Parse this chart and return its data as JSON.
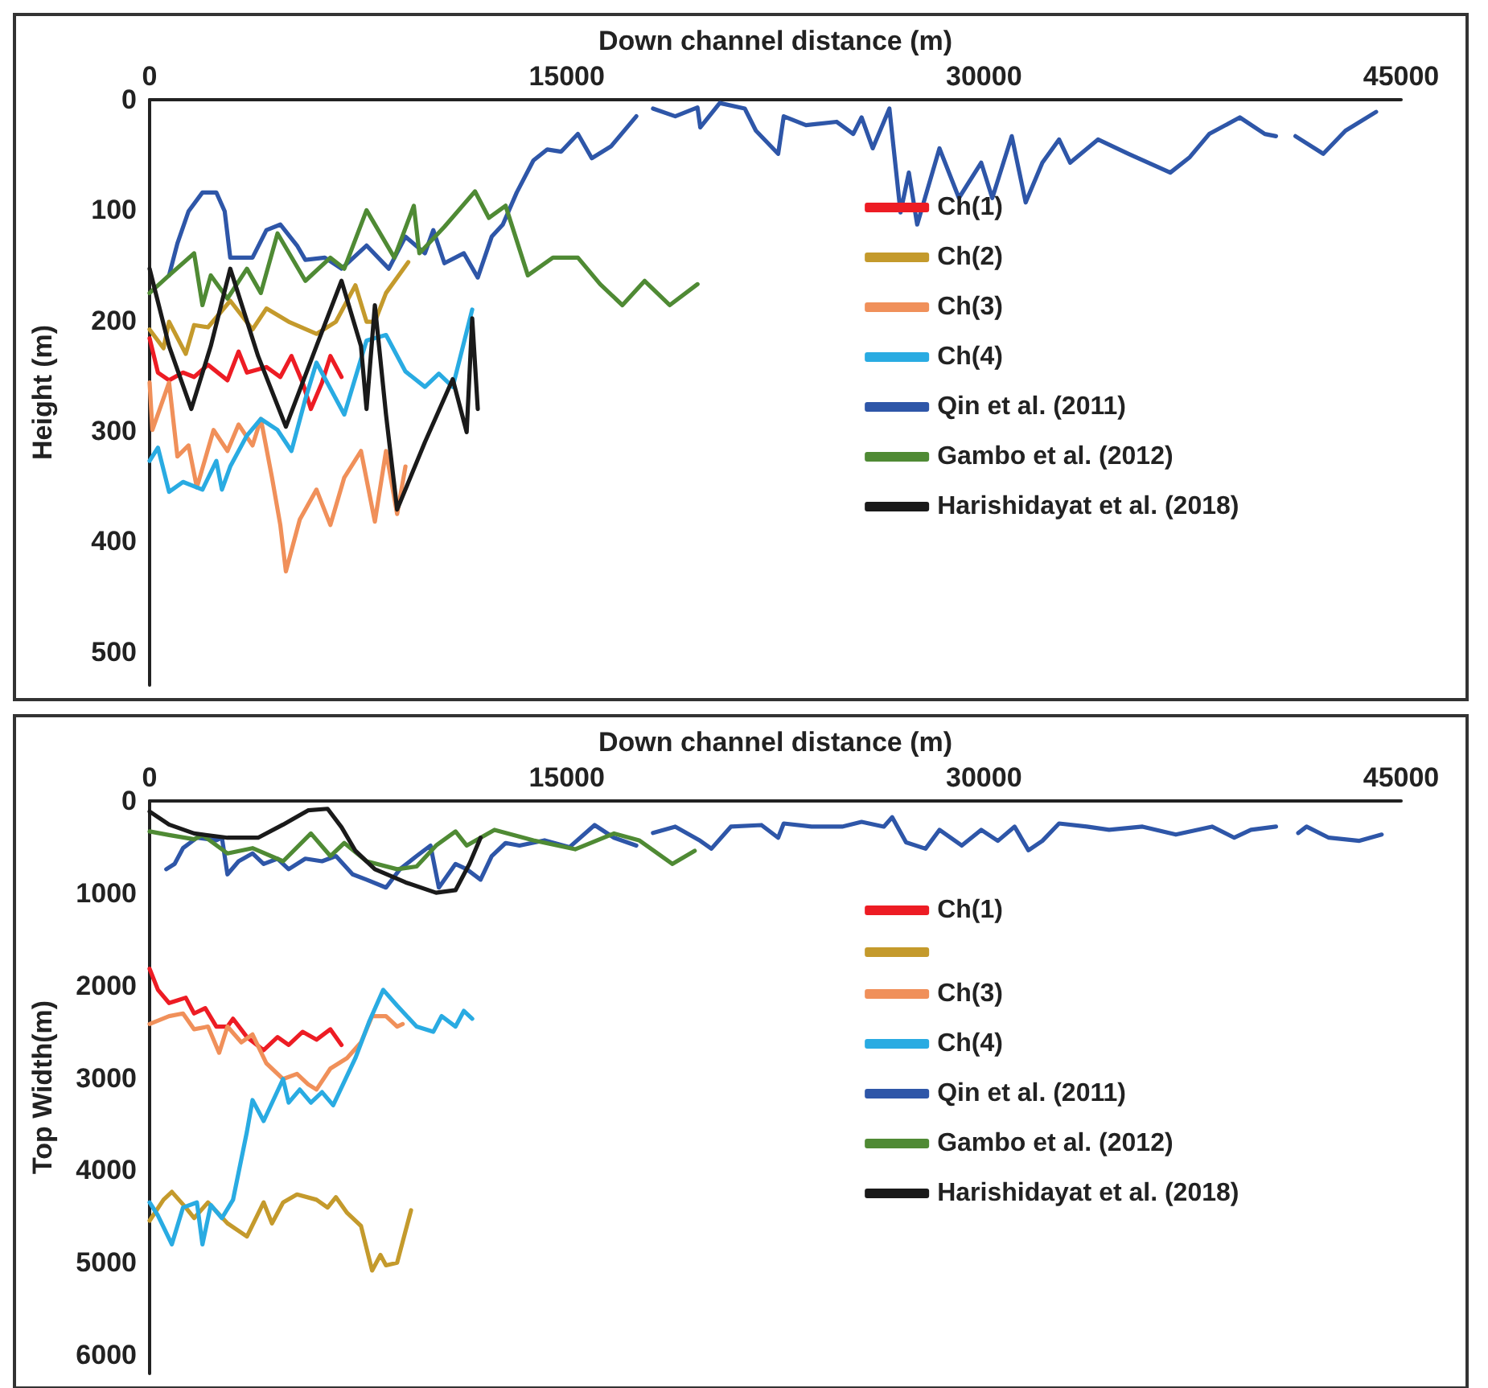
{
  "chart_data": [
    {
      "type": "line",
      "xlabel": "Down channel distance (m)",
      "ylabel": "Height (m)",
      "xlim": [
        0,
        45000
      ],
      "xticks": [
        0,
        15000,
        30000,
        45000
      ],
      "ylim": [
        530,
        0
      ],
      "yticks": [
        0,
        100,
        200,
        300,
        400,
        500
      ],
      "legend": "right",
      "marker": "none",
      "line_style": "solid",
      "grid": false,
      "series": [
        {
          "name": "Ch(1)",
          "color": "#ed1c24",
          "x": [
            0,
            300,
            700,
            1200,
            1600,
            2100,
            2800,
            3200,
            3500,
            4200,
            4700,
            5100,
            5500,
            5800,
            6200,
            6500,
            6900
          ],
          "values": [
            216,
            247,
            254,
            247,
            251,
            240,
            254,
            228,
            247,
            242,
            251,
            232,
            256,
            280,
            256,
            232,
            251
          ]
        },
        {
          "name": "Ch(2)",
          "color": "#c49a2c",
          "x": [
            0,
            500,
            700,
            1300,
            1600,
            2100,
            2900,
            3700,
            4200,
            5000,
            6000,
            6700,
            7400,
            7800,
            8100,
            8500,
            9300
          ],
          "values": [
            208,
            225,
            201,
            230,
            204,
            206,
            182,
            208,
            189,
            201,
            212,
            201,
            168,
            201,
            201,
            175,
            147
          ]
        },
        {
          "name": "Ch(3)",
          "color": "#f0905a",
          "x": [
            0,
            100,
            700,
            1000,
            1400,
            1700,
            2300,
            2800,
            3200,
            3700,
            4000,
            4400,
            4700,
            4900,
            5400,
            6000,
            6500,
            7000,
            7600,
            8100,
            8500,
            8900,
            9200
          ],
          "values": [
            256,
            299,
            256,
            323,
            313,
            351,
            299,
            318,
            294,
            313,
            289,
            342,
            385,
            427,
            380,
            353,
            385,
            342,
            318,
            382,
            318,
            375,
            332
          ]
        },
        {
          "name": "Ch(4)",
          "color": "#29abe2",
          "x": [
            0,
            300,
            700,
            1200,
            1900,
            2400,
            2600,
            2900,
            3500,
            4000,
            4600,
            5100,
            5600,
            6000,
            6300,
            7000,
            7800,
            8500,
            9200,
            9900,
            10400,
            10900,
            11600
          ],
          "values": [
            327,
            315,
            355,
            346,
            353,
            327,
            353,
            332,
            304,
            289,
            299,
            318,
            271,
            238,
            252,
            285,
            218,
            213,
            246,
            260,
            248,
            260,
            190
          ]
        },
        {
          "name": "Qin et al. (2011)",
          "color": "#2e56a8",
          "x": [
            700,
            1000,
            1400,
            1900,
            2400,
            2700,
            2900,
            3700,
            4200,
            4700,
            5300,
            5600,
            6300,
            6900,
            7800,
            8600,
            9200,
            9900,
            10200,
            10600,
            11300,
            11800,
            12300,
            12700,
            13200,
            13800,
            14300,
            14800,
            15400,
            15900,
            16600,
            17500,
            17700,
            18100,
            18900,
            19700,
            19800,
            20500,
            21400,
            21800,
            22600,
            22800,
            23600,
            24700,
            25300,
            25600,
            26000,
            26600,
            27000,
            27300,
            27600,
            28400,
            29100,
            29900,
            30300,
            31000,
            31500,
            32100,
            32700,
            33100,
            34100,
            35200,
            36700,
            37400,
            38100,
            39200,
            40100,
            40500,
            40800,
            41200,
            42200,
            43000,
            44100
          ],
          "values": [
            159,
            130,
            101,
            84,
            84,
            101,
            143,
            143,
            118,
            113,
            132,
            145,
            143,
            153,
            132,
            153,
            124,
            139,
            118,
            148,
            139,
            161,
            124,
            113,
            84,
            55,
            45,
            47,
            31,
            53,
            42,
            15,
            null,
            8,
            15,
            7,
            25,
            3,
            8,
            28,
            49,
            15,
            23,
            20,
            31,
            16,
            44,
            8,
            102,
            66,
            113,
            44,
            89,
            57,
            89,
            33,
            93,
            57,
            36,
            57,
            36,
            49,
            66,
            52,
            31,
            16,
            31,
            33,
            null,
            33,
            49,
            28,
            11
          ]
        },
        {
          "name": "Gambo et al. (2012)",
          "color": "#4f8a34",
          "x": [
            0,
            700,
            1600,
            1900,
            2200,
            2800,
            3500,
            4000,
            4600,
            5600,
            6500,
            7000,
            7800,
            8800,
            9500,
            9700,
            10600,
            11700,
            12200,
            12800,
            13600,
            14500,
            15400,
            16200,
            17000,
            17800,
            18700,
            19700
          ],
          "values": [
            175,
            159,
            139,
            186,
            159,
            180,
            153,
            175,
            121,
            164,
            143,
            153,
            100,
            143,
            96,
            139,
            115,
            83,
            107,
            96,
            159,
            143,
            143,
            167,
            186,
            164,
            186,
            167
          ]
        },
        {
          "name": "Harishidayat et al. (2018)",
          "color": "#1a1a1a",
          "x": [
            0,
            700,
            1500,
            2200,
            2900,
            3900,
            4900,
            6000,
            6900,
            7600,
            7800,
            8100,
            8500,
            8900,
            9900,
            10900,
            11400,
            11600,
            11800
          ],
          "values": [
            153,
            223,
            280,
            223,
            153,
            232,
            296,
            223,
            164,
            223,
            280,
            186,
            285,
            371,
            310,
            253,
            301,
            198,
            280
          ]
        }
      ]
    },
    {
      "type": "line",
      "xlabel": "Down channel distance (m)",
      "ylabel": "Top Width(m)",
      "xlim": [
        0,
        45000
      ],
      "xticks": [
        0,
        15000,
        30000,
        45000
      ],
      "ylim": [
        6200,
        0
      ],
      "yticks": [
        0,
        1000,
        2000,
        3000,
        4000,
        5000,
        6000
      ],
      "legend": "right",
      "marker": "none",
      "line_style": "solid",
      "grid": false,
      "series": [
        {
          "name": "Ch(1)",
          "color": "#ed1c24",
          "x": [
            0,
            300,
            700,
            1000,
            1300,
            1600,
            2000,
            2400,
            2800,
            3000,
            3500,
            4100,
            4600,
            5000,
            5500,
            6000,
            6500,
            6900
          ],
          "values": [
            1818,
            2045,
            2188,
            2159,
            2130,
            2301,
            2244,
            2443,
            2443,
            2358,
            2557,
            2699,
            2557,
            2642,
            2500,
            2585,
            2472,
            2642
          ]
        },
        {
          "color": "#c49a2c",
          "x": [
            0,
            500,
            800,
            1300,
            1600,
            2100,
            2800,
            3500,
            4100,
            4400,
            4800,
            5300,
            6000,
            6400,
            6700,
            7100,
            7600,
            8000,
            8300,
            8500,
            8900,
            9400
          ],
          "values": [
            4545,
            4318,
            4233,
            4403,
            4517,
            4347,
            4574,
            4716,
            4347,
            4574,
            4347,
            4261,
            4318,
            4403,
            4290,
            4460,
            4602,
            5085,
            4915,
            5028,
            5000,
            4432
          ]
        },
        {
          "name": "Ch(3)",
          "color": "#f0905a",
          "x": [
            0,
            700,
            1200,
            1600,
            2100,
            2500,
            2800,
            3300,
            3700,
            4200,
            4800,
            5300,
            5700,
            6000,
            6500,
            7100,
            7600,
            8000,
            8500,
            8900,
            9100
          ],
          "values": [
            2415,
            2330,
            2301,
            2472,
            2443,
            2727,
            2443,
            2614,
            2528,
            2841,
            3011,
            2955,
            3068,
            3125,
            2898,
            2784,
            2614,
            2330,
            2330,
            2443,
            2415
          ]
        },
        {
          "name": "Ch(4)",
          "color": "#29abe2",
          "x": [
            0,
            300,
            800,
            1200,
            1700,
            1900,
            2200,
            2600,
            3000,
            3500,
            3700,
            4100,
            4800,
            5000,
            5400,
            5800,
            6200,
            6600,
            7400,
            7900,
            8400,
            8900,
            9600,
            10200,
            10500,
            11000,
            11300,
            11600
          ],
          "values": [
            4347,
            4489,
            4801,
            4403,
            4347,
            4801,
            4375,
            4517,
            4318,
            3580,
            3239,
            3466,
            3011,
            3267,
            3125,
            3267,
            3153,
            3295,
            2784,
            2386,
            2045,
            2216,
            2443,
            2500,
            2330,
            2443,
            2273,
            2358
          ]
        },
        {
          "name": "Qin et al. (2011)",
          "color": "#2e56a8",
          "x": [
            600,
            900,
            1200,
            1700,
            2400,
            2600,
            2800,
            3200,
            3700,
            4100,
            4600,
            5000,
            5600,
            6200,
            6700,
            7300,
            7800,
            8500,
            9000,
            9600,
            10100,
            10400,
            11000,
            11400,
            11900,
            12300,
            12800,
            13300,
            14200,
            15100,
            16000,
            16700,
            17500,
            17800,
            18100,
            18900,
            19800,
            20200,
            20900,
            22000,
            22600,
            22800,
            23800,
            24900,
            25600,
            26400,
            26700,
            27200,
            27900,
            28400,
            29200,
            29900,
            30500,
            31100,
            31600,
            32100,
            32700,
            33700,
            34500,
            35700,
            36900,
            38200,
            39000,
            39600,
            40500,
            40900,
            41300,
            41600,
            42400,
            43500,
            44300
          ],
          "values": [
            739,
            682,
            511,
            398,
            426,
            398,
            795,
            653,
            568,
            682,
            625,
            739,
            625,
            653,
            597,
            795,
            852,
            938,
            739,
            597,
            483,
            938,
            682,
            739,
            852,
            597,
            455,
            483,
            426,
            500,
            261,
            398,
            483,
            null,
            347,
            278,
            432,
            517,
            278,
            261,
            398,
            244,
            278,
            278,
            227,
            278,
            176,
            449,
            517,
            313,
            483,
            313,
            432,
            278,
            534,
            432,
            244,
            278,
            313,
            278,
            364,
            278,
            398,
            313,
            278,
            null,
            347,
            278,
            398,
            432,
            364
          ]
        },
        {
          "name": "Gambo et al. (2012)",
          "color": "#4f8a34",
          "x": [
            0,
            700,
            1600,
            1900,
            2800,
            3700,
            4800,
            5800,
            6500,
            7000,
            7800,
            8900,
            9600,
            10300,
            11000,
            11400,
            12400,
            13800,
            15300,
            16700,
            17600,
            18800,
            19600
          ],
          "values": [
            330,
            369,
            415,
            369,
            568,
            511,
            653,
            352,
            597,
            455,
            653,
            739,
            710,
            483,
            330,
            483,
            313,
            426,
            523,
            352,
            426,
            682,
            540
          ]
        },
        {
          "name": "Harishidayat et al. (2018)",
          "color": "#1a1a1a",
          "x": [
            0,
            700,
            1600,
            2800,
            3900,
            4800,
            5700,
            6400,
            6900,
            7400,
            8100,
            9200,
            10300,
            11000,
            11500,
            11900
          ],
          "values": [
            114,
            256,
            352,
            398,
            398,
            256,
            102,
            85,
            284,
            540,
            739,
            881,
            994,
            966,
            682,
            398
          ]
        }
      ]
    }
  ]
}
